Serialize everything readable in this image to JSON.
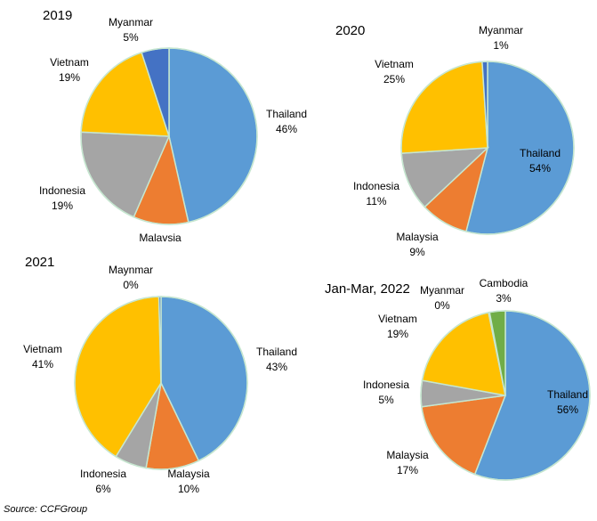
{
  "source": "Source: CCFGroup",
  "colors": {
    "Thailand": "#5b9bd5",
    "Malaysia": "#ed7d31",
    "Indonesia": "#a5a5a5",
    "Vietnam": "#ffc000",
    "Myanmar": "#4472c4",
    "Maynmar": "#4472c4",
    "Cambodia": "#70ad47",
    "outline": "#c6e6d0"
  },
  "chart_data": [
    {
      "type": "pie",
      "title": "2019",
      "slices": [
        {
          "label": "Thailand",
          "value": 46,
          "text": "46%"
        },
        {
          "label": "Malavsia",
          "color_key": "Malaysia",
          "value": 10,
          "text": ""
        },
        {
          "label": "Indonesia",
          "value": 19,
          "text": "19%"
        },
        {
          "label": "Vietnam",
          "value": 19,
          "text": "19%"
        },
        {
          "label": "Myanmar",
          "value": 5,
          "text": "5%"
        }
      ]
    },
    {
      "type": "pie",
      "title": "2020",
      "slices": [
        {
          "label": "Thailand",
          "value": 54,
          "text": "54%"
        },
        {
          "label": "Malaysia",
          "value": 9,
          "text": "9%"
        },
        {
          "label": "Indonesia",
          "value": 11,
          "text": "11%"
        },
        {
          "label": "Vietnam",
          "value": 25,
          "text": "25%"
        },
        {
          "label": "Myanmar",
          "value": 1,
          "text": "1%"
        }
      ]
    },
    {
      "type": "pie",
      "title": "2021",
      "slices": [
        {
          "label": "Thailand",
          "value": 43,
          "text": "43%"
        },
        {
          "label": "Malaysia",
          "value": 10,
          "text": "10%"
        },
        {
          "label": "Indonesia",
          "value": 6,
          "text": "6%"
        },
        {
          "label": "Vietnam",
          "value": 41,
          "text": "41%"
        },
        {
          "label": "Maynmar",
          "value": 0.4,
          "text": "0%"
        }
      ]
    },
    {
      "type": "pie",
      "title": "Jan-Mar, 2022",
      "slices": [
        {
          "label": "Thailand",
          "value": 56,
          "text": "56%"
        },
        {
          "label": "Malaysia",
          "value": 17,
          "text": "17%"
        },
        {
          "label": "Indonesia",
          "value": 5,
          "text": "5%"
        },
        {
          "label": "Vietnam",
          "value": 19,
          "text": "19%"
        },
        {
          "label": "Myanmar",
          "value": 0.2,
          "text": "0%"
        },
        {
          "label": "Cambodia",
          "value": 3,
          "text": "3%"
        }
      ]
    }
  ]
}
